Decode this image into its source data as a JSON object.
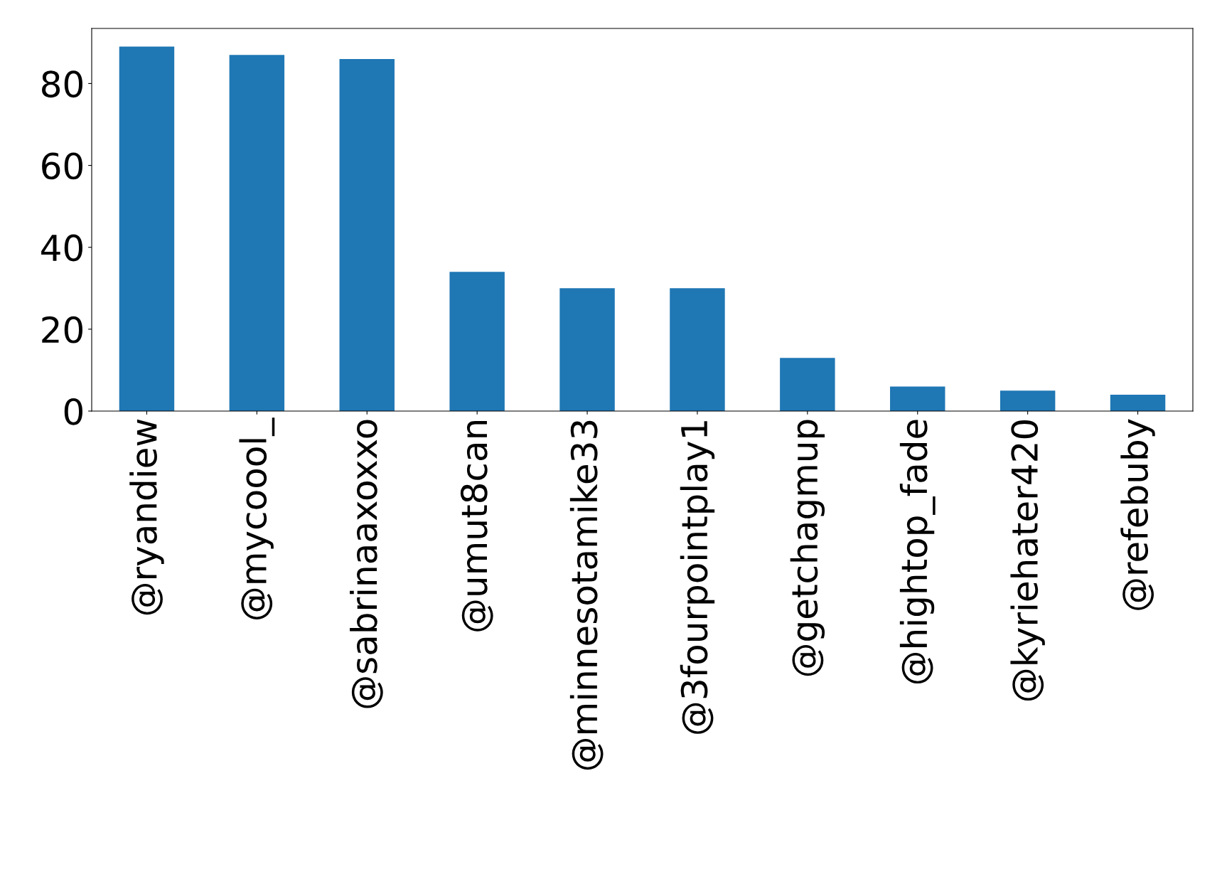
{
  "chart_data": {
    "type": "bar",
    "categories": [
      "@ryandiew",
      "@mycoool_",
      "@sabrinaaxoxxo",
      "@umut8can",
      "@minnesotamike33",
      "@3fourpointplay1",
      "@getchagmup",
      "@hightop_fade",
      "@kyriehater420",
      "@refebuby"
    ],
    "values": [
      89,
      87,
      86,
      34,
      30,
      30,
      13,
      6,
      5,
      4
    ],
    "color": "#1f77b4",
    "ylim": [
      0,
      93.45
    ],
    "yticks": [
      0,
      20,
      40,
      60,
      80
    ],
    "grid": false,
    "legend": false
  }
}
